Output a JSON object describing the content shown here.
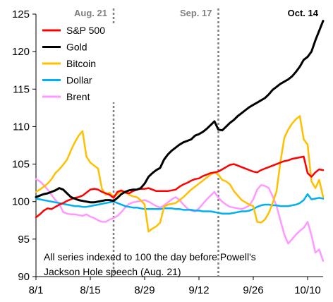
{
  "chart_data": {
    "type": "line",
    "title": "",
    "xlabel": "",
    "ylabel": "",
    "ylim": [
      90,
      125
    ],
    "yticks": [
      "90",
      "95",
      "100",
      "105",
      "110",
      "115",
      "120",
      "125"
    ],
    "xticks": [
      {
        "date": "2023-08-01",
        "label": "8/1"
      },
      {
        "date": "2023-08-15",
        "label": "8/15"
      },
      {
        "date": "2023-08-29",
        "label": "8/29"
      },
      {
        "date": "2023-09-12",
        "label": "9/12"
      },
      {
        "date": "2023-09-26",
        "label": "9/26"
      },
      {
        "date": "2023-10-10",
        "label": "10/10"
      }
    ],
    "x_range": [
      "2023-08-01",
      "2023-10-14"
    ],
    "grid": false,
    "legend_position": "top-left",
    "vlines": [
      {
        "date": "2023-08-21",
        "label": "Aug. 21",
        "color": "#7f7f7f"
      },
      {
        "date": "2023-09-17",
        "label": "Sep. 17",
        "color": "#7f7f7f"
      }
    ],
    "corner_label": "Oct. 14",
    "note_lines": [
      "All series indexed to 100 the day before Powell's",
      "Jackson Hole speech (Aug. 21)"
    ],
    "dates": [
      "2023-08-01",
      "2023-08-02",
      "2023-08-03",
      "2023-08-04",
      "2023-08-05",
      "2023-08-06",
      "2023-08-07",
      "2023-08-08",
      "2023-08-09",
      "2023-08-10",
      "2023-08-11",
      "2023-08-12",
      "2023-08-13",
      "2023-08-14",
      "2023-08-15",
      "2023-08-16",
      "2023-08-17",
      "2023-08-18",
      "2023-08-19",
      "2023-08-20",
      "2023-08-21",
      "2023-08-22",
      "2023-08-23",
      "2023-08-24",
      "2023-08-25",
      "2023-08-26",
      "2023-08-27",
      "2023-08-28",
      "2023-08-29",
      "2023-08-30",
      "2023-08-31",
      "2023-09-01",
      "2023-09-02",
      "2023-09-03",
      "2023-09-04",
      "2023-09-05",
      "2023-09-06",
      "2023-09-07",
      "2023-09-08",
      "2023-09-09",
      "2023-09-10",
      "2023-09-11",
      "2023-09-12",
      "2023-09-13",
      "2023-09-14",
      "2023-09-15",
      "2023-09-16",
      "2023-09-17",
      "2023-09-18",
      "2023-09-19",
      "2023-09-20",
      "2023-09-21",
      "2023-09-22",
      "2023-09-23",
      "2023-09-24",
      "2023-09-25",
      "2023-09-26",
      "2023-09-27",
      "2023-09-28",
      "2023-09-29",
      "2023-09-30",
      "2023-10-01",
      "2023-10-02",
      "2023-10-03",
      "2023-10-04",
      "2023-10-05",
      "2023-10-06",
      "2023-10-07",
      "2023-10-08",
      "2023-10-09",
      "2023-10-10",
      "2023-10-11",
      "2023-10-12",
      "2023-10-13",
      "2023-10-14"
    ],
    "series": [
      {
        "name": "S&P 500",
        "color": "#ff0000",
        "values": [
          97.9,
          98.3,
          98.8,
          99.1,
          99.0,
          99.3,
          99.6,
          99.8,
          100.1,
          100.3,
          100.5,
          100.6,
          100.8,
          101.2,
          101.6,
          101.7,
          101.6,
          101.3,
          101.1,
          100.9,
          100.5,
          101.3,
          101.5,
          101.2,
          101.1,
          101.4,
          101.6,
          101.7,
          101.7,
          101.8,
          101.6,
          101.4,
          101.4,
          101.4,
          101.4,
          101.5,
          101.6,
          102.0,
          102.3,
          102.5,
          102.8,
          103.0,
          103.1,
          103.4,
          103.6,
          103.8,
          103.9,
          104.0,
          104.3,
          104.6,
          104.9,
          105.0,
          104.8,
          104.6,
          104.4,
          104.2,
          104.0,
          103.9,
          104.2,
          104.4,
          104.6,
          104.8,
          105.0,
          105.2,
          105.4,
          105.5,
          105.7,
          105.8,
          105.9,
          106.0,
          103.8,
          103.3,
          103.9,
          104.3,
          104.2
        ]
      },
      {
        "name": "Gold",
        "color": "#000000",
        "values": [
          100.6,
          100.8,
          101.0,
          101.1,
          101.3,
          101.5,
          101.8,
          101.6,
          101.1,
          100.6,
          100.4,
          100.2,
          100.1,
          100.0,
          99.9,
          99.9,
          100.0,
          100.1,
          100.2,
          100.2,
          100.1,
          100.5,
          101.0,
          101.3,
          101.5,
          101.6,
          101.6,
          101.8,
          102.4,
          103.3,
          103.8,
          104.2,
          104.5,
          105.6,
          106.3,
          106.8,
          107.2,
          107.6,
          107.9,
          108.1,
          108.3,
          108.8,
          109.0,
          109.3,
          109.7,
          110.2,
          110.7,
          109.6,
          109.5,
          110.0,
          110.5,
          110.9,
          111.4,
          111.8,
          112.2,
          112.6,
          112.9,
          113.2,
          113.5,
          113.8,
          114.3,
          114.9,
          115.3,
          115.7,
          116.0,
          116.3,
          116.7,
          117.3,
          118.0,
          118.9,
          119.3,
          120.0,
          121.5,
          122.8,
          124.1
        ]
      },
      {
        "name": "Bitcoin",
        "color": "#ffc000",
        "values": [
          101.3,
          101.6,
          102.0,
          102.4,
          103.0,
          103.8,
          104.3,
          104.9,
          105.6,
          106.8,
          107.9,
          108.8,
          109.4,
          106.0,
          105.2,
          104.8,
          104.4,
          101.7,
          100.9,
          101.2,
          100.6,
          101.0,
          101.4,
          101.3,
          100.9,
          100.7,
          100.6,
          100.2,
          99.6,
          96.0,
          96.4,
          96.7,
          97.2,
          99.3,
          99.6,
          99.7,
          99.8,
          100.2,
          100.6,
          101.1,
          101.6,
          102.0,
          102.4,
          102.8,
          103.2,
          103.6,
          103.9,
          103.6,
          102.9,
          102.7,
          102.3,
          101.4,
          100.8,
          100.2,
          99.9,
          99.6,
          99.4,
          97.3,
          97.2,
          97.6,
          98.5,
          99.8,
          101.4,
          105.3,
          108.5,
          109.6,
          110.4,
          111.0,
          111.4,
          108.3,
          107.6,
          102.7,
          101.8,
          102.9,
          100.6
        ]
      },
      {
        "name": "Dollar",
        "color": "#00b0f0",
        "values": [
          100.4,
          100.3,
          100.2,
          100.1,
          100.0,
          99.9,
          99.8,
          99.7,
          99.6,
          99.5,
          99.4,
          99.4,
          99.3,
          99.3,
          99.4,
          99.5,
          99.6,
          99.7,
          99.8,
          99.9,
          100.0,
          99.8,
          99.6,
          99.4,
          99.3,
          99.2,
          99.2,
          99.1,
          99.0,
          99.0,
          99.0,
          99.0,
          99.0,
          99.1,
          99.1,
          99.1,
          99.0,
          99.0,
          98.9,
          98.9,
          98.9,
          98.8,
          98.8,
          98.7,
          98.7,
          98.7,
          98.6,
          98.5,
          98.4,
          98.4,
          98.4,
          98.5,
          98.6,
          98.7,
          98.7,
          98.8,
          99.0,
          99.3,
          99.5,
          99.6,
          99.6,
          99.5,
          99.5,
          99.4,
          99.4,
          99.4,
          99.5,
          99.6,
          99.8,
          100.2,
          101.0,
          100.3,
          100.4,
          100.5,
          100.4
        ]
      },
      {
        "name": "Brent",
        "color": "#ff99ff",
        "values": [
          103.0,
          102.7,
          102.2,
          101.6,
          100.9,
          100.2,
          99.7,
          98.6,
          98.4,
          98.3,
          98.3,
          98.2,
          98.1,
          98.3,
          98.0,
          97.8,
          97.5,
          97.3,
          97.3,
          97.6,
          97.8,
          98.1,
          98.6,
          99.2,
          99.7,
          99.9,
          100.0,
          100.1,
          100.2,
          100.0,
          99.7,
          99.4,
          99.2,
          99.5,
          99.9,
          100.3,
          100.6,
          100.2,
          99.6,
          99.1,
          98.8,
          98.7,
          99.1,
          99.7,
          100.3,
          100.8,
          101.3,
          100.5,
          100.0,
          99.6,
          99.3,
          99.2,
          99.1,
          99.0,
          99.2,
          99.5,
          100.3,
          101.6,
          102.2,
          102.1,
          101.8,
          100.7,
          99.4,
          97.5,
          95.6,
          94.4,
          95.0,
          95.6,
          96.1,
          96.5,
          97.3,
          95.5,
          93.2,
          93.6,
          92.1
        ]
      }
    ]
  }
}
